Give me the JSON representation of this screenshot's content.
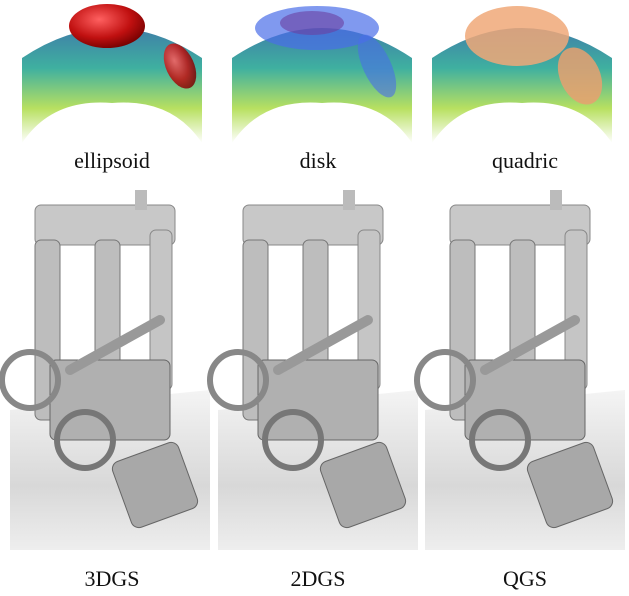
{
  "primitives": [
    {
      "label": "ellipsoid"
    },
    {
      "label": "disk"
    },
    {
      "label": "quadric"
    }
  ],
  "methods": [
    {
      "label": "3DGS"
    },
    {
      "label": "2DGS"
    },
    {
      "label": "QGS"
    }
  ]
}
